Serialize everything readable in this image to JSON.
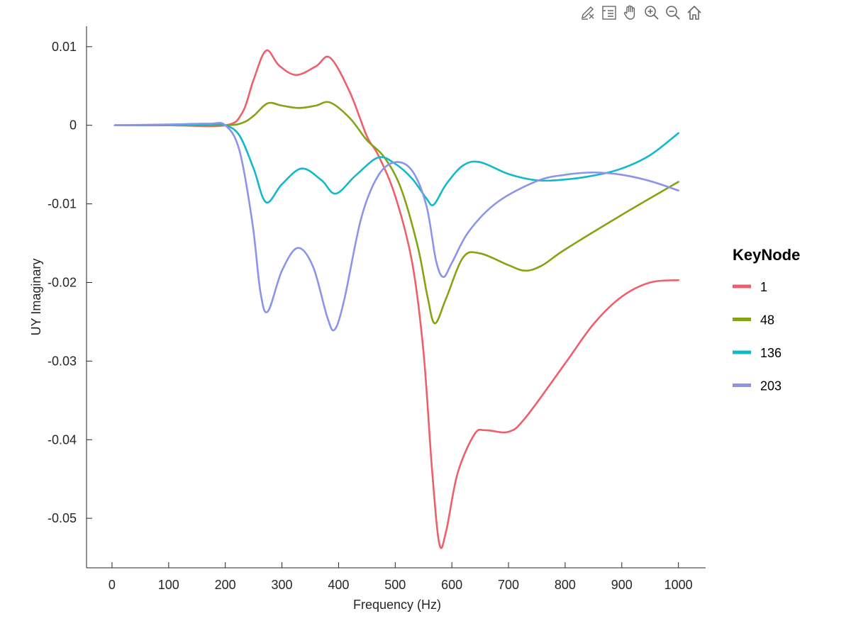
{
  "toolbar": {
    "buttons": [
      {
        "icon": "edit-plot-icon"
      },
      {
        "icon": "data-cursor-icon"
      },
      {
        "icon": "pan-icon"
      },
      {
        "icon": "zoom-in-icon"
      },
      {
        "icon": "zoom-out-icon"
      },
      {
        "icon": "home-icon"
      }
    ]
  },
  "chart_data": {
    "type": "line",
    "xlabel": "Frequency (Hz)",
    "ylabel": "UY Imaginary",
    "xlim": [
      -45,
      1048
    ],
    "ylim": [
      -0.0563,
      0.0126
    ],
    "xticks": [
      0,
      100,
      200,
      300,
      400,
      500,
      600,
      700,
      800,
      900,
      1000
    ],
    "xtick_labels": [
      "0",
      "100",
      "200",
      "300",
      "400",
      "500",
      "600",
      "700",
      "800",
      "900",
      "1000"
    ],
    "yticks": [
      0.01,
      0,
      -0.01,
      -0.02,
      -0.03,
      -0.04,
      -0.05
    ],
    "ytick_labels": [
      "0.01",
      "0",
      "-0.01",
      "-0.02",
      "-0.03",
      "-0.04",
      "-0.05"
    ],
    "grid": false,
    "legend": {
      "title": "KeyNode",
      "placement": "right"
    },
    "series": [
      {
        "name": "1",
        "color": "#ee5f6c",
        "x": [
          5,
          100,
          200,
          230,
          250,
          272,
          295,
          325,
          360,
          385,
          420,
          450,
          470,
          500,
          530,
          550,
          565,
          578,
          590,
          610,
          640,
          660,
          700,
          730,
          800,
          850,
          900,
          950,
          1000
        ],
        "y": [
          0,
          0,
          0,
          0.0016,
          0.0058,
          0.0095,
          0.0076,
          0.0064,
          0.0075,
          0.0086,
          0.0042,
          -0.0014,
          -0.0038,
          -0.009,
          -0.0175,
          -0.0289,
          -0.0438,
          -0.0533,
          -0.0516,
          -0.0443,
          -0.0393,
          -0.0388,
          -0.039,
          -0.0372,
          -0.0303,
          -0.0253,
          -0.0218,
          -0.02,
          -0.0197
        ]
      },
      {
        "name": "48",
        "color": "#84a413",
        "x": [
          5,
          100,
          200,
          230,
          250,
          275,
          300,
          330,
          360,
          385,
          420,
          450,
          480,
          510,
          540,
          557,
          570,
          590,
          620,
          650,
          700,
          730,
          760,
          800,
          900,
          1000
        ],
        "y": [
          0,
          0,
          0,
          0.0003,
          0.0012,
          0.0028,
          0.0025,
          0.0022,
          0.0025,
          0.0029,
          0.0009,
          -0.0019,
          -0.004,
          -0.008,
          -0.0155,
          -0.0218,
          -0.0252,
          -0.022,
          -0.0168,
          -0.0163,
          -0.0178,
          -0.0185,
          -0.0178,
          -0.0158,
          -0.0114,
          -0.0072
        ]
      },
      {
        "name": "136",
        "color": "#14b8cb",
        "x": [
          5,
          100,
          170,
          200,
          225,
          250,
          272,
          300,
          335,
          370,
          395,
          430,
          470,
          500,
          530,
          555,
          568,
          590,
          620,
          650,
          700,
          750,
          800,
          850,
          900,
          950,
          1000
        ],
        "y": [
          0,
          0,
          0.0001,
          0,
          -0.0013,
          -0.0055,
          -0.0098,
          -0.0075,
          -0.0055,
          -0.007,
          -0.0087,
          -0.0064,
          -0.0041,
          -0.0049,
          -0.0068,
          -0.0093,
          -0.0101,
          -0.0075,
          -0.0051,
          -0.0047,
          -0.0062,
          -0.007,
          -0.0069,
          -0.0064,
          -0.0055,
          -0.0038,
          -0.001
        ]
      },
      {
        "name": "203",
        "color": "#8b94e8",
        "x": [
          5,
          100,
          170,
          200,
          225,
          248,
          262,
          275,
          300,
          328,
          355,
          380,
          393,
          410,
          440,
          470,
          500,
          530,
          555,
          572,
          585,
          600,
          630,
          680,
          750,
          800,
          850,
          900,
          950,
          1000
        ],
        "y": [
          0,
          0.0001,
          0.0002,
          0,
          -0.0032,
          -0.0125,
          -0.0212,
          -0.0237,
          -0.0185,
          -0.0156,
          -0.018,
          -0.0244,
          -0.026,
          -0.0222,
          -0.0118,
          -0.0064,
          -0.0047,
          -0.0058,
          -0.0102,
          -0.0172,
          -0.0193,
          -0.0175,
          -0.0135,
          -0.0098,
          -0.0071,
          -0.0063,
          -0.006,
          -0.0063,
          -0.0071,
          -0.0083
        ]
      }
    ]
  }
}
